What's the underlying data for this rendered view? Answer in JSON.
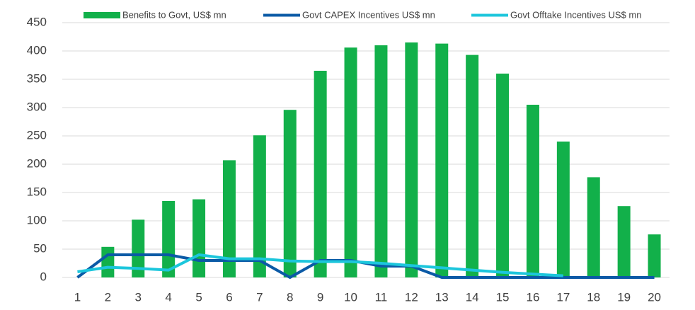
{
  "chart_data": {
    "type": "bar",
    "categories": [
      "1",
      "2",
      "3",
      "4",
      "5",
      "6",
      "7",
      "8",
      "9",
      "10",
      "11",
      "12",
      "13",
      "14",
      "15",
      "16",
      "17",
      "18",
      "19",
      "20"
    ],
    "series": [
      {
        "name": "Benefits to Govt, US$ mn",
        "type": "bar",
        "color": "#12b04a",
        "values": [
          0,
          54,
          102,
          135,
          138,
          207,
          251,
          296,
          365,
          406,
          410,
          415,
          413,
          393,
          360,
          305,
          240,
          177,
          126,
          76
        ]
      },
      {
        "name": "Govt CAPEX Incentives US$ mn",
        "type": "line",
        "color": "#0b5aa6",
        "values": [
          0,
          40,
          40,
          40,
          30,
          30,
          30,
          0,
          30,
          30,
          20,
          20,
          0,
          0,
          0,
          0,
          0,
          0,
          0,
          0
        ]
      },
      {
        "name": "Govt Offtake Incentives US$ mn",
        "type": "line",
        "color": "#1cc6dc",
        "values": [
          10,
          18,
          16,
          13,
          40,
          33,
          33,
          29,
          28,
          28,
          25,
          21,
          17,
          13,
          9,
          6,
          3,
          null,
          null,
          null
        ]
      }
    ],
    "ylim": [
      0,
      450
    ],
    "yticks": [
      0,
      50,
      100,
      150,
      200,
      250,
      300,
      350,
      400,
      450
    ],
    "grid": true,
    "legend": "top"
  }
}
